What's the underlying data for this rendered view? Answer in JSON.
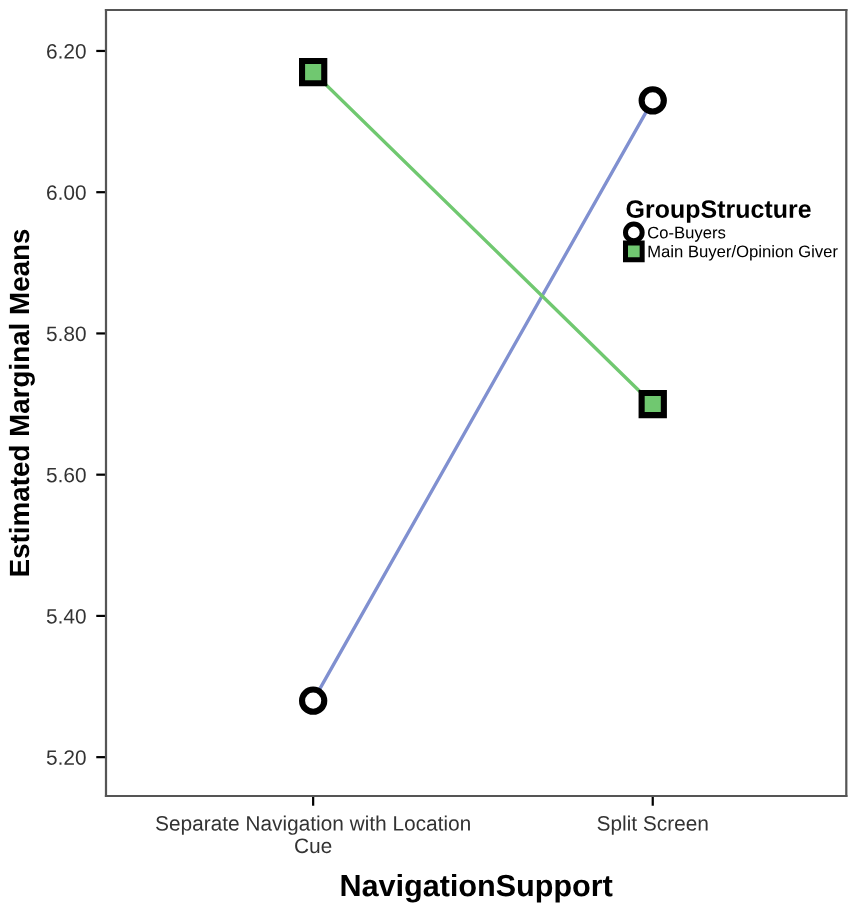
{
  "chart_data": {
    "type": "line",
    "xlabel": "NavigationSupport",
    "ylabel": "Estimated Marginal Means",
    "legend_title": "GroupStructure",
    "categories": [
      "Separate Navigation with Location\nCue",
      "Split Screen"
    ],
    "series": [
      {
        "name": "Co-Buyers",
        "color": "#8090d0",
        "marker": "circle",
        "values": [
          5.28,
          6.13
        ]
      },
      {
        "name": "Main Buyer/Opinion Giver",
        "color": "#70c870",
        "marker": "square",
        "values": [
          6.17,
          5.7
        ]
      }
    ],
    "ylim": [
      5.145,
      6.258
    ],
    "yticks": [
      {
        "value": 5.2,
        "label": "5.20"
      },
      {
        "value": 5.4,
        "label": "5.40"
      },
      {
        "value": 5.6,
        "label": "5.60"
      },
      {
        "value": 5.8,
        "label": "5.80"
      },
      {
        "value": 6.0,
        "label": "6.00"
      },
      {
        "value": 6.2,
        "label": "6.20"
      }
    ],
    "grid": false,
    "legend": "right",
    "line_style": "solid"
  }
}
